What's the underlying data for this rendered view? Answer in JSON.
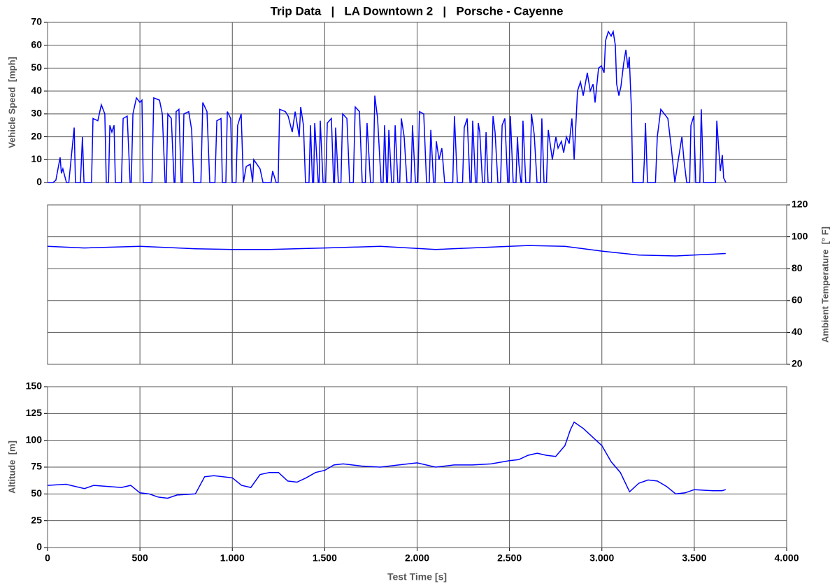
{
  "chart_data": [
    {
      "type": "line",
      "title": "Trip Data   |   LA Downtown 2   |   Porsche - Cayenne",
      "ylabel": "Vehicle Speed  [mph]",
      "x": [
        0,
        30,
        45,
        68,
        75,
        83,
        102,
        115,
        144,
        151,
        178,
        189,
        197,
        238,
        246,
        272,
        291,
        310,
        318,
        330,
        337,
        348,
        360,
        367,
        400,
        409,
        431,
        447,
        453,
        462,
        481,
        500,
        511,
        518,
        565,
        575,
        606,
        621,
        636,
        643,
        651,
        670,
        685,
        690,
        696,
        711,
        723,
        730,
        738,
        764,
        780,
        791,
        830,
        840,
        863,
        878,
        906,
        916,
        939,
        946,
        965,
        973,
        991,
        999,
        1020,
        1029,
        1048,
        1060,
        1075,
        1097,
        1110,
        1116,
        1150,
        1166,
        1210,
        1218,
        1237,
        1248,
        1256,
        1287,
        1302,
        1324,
        1340,
        1362,
        1370,
        1385,
        1396,
        1415,
        1423,
        1434,
        1440,
        1446,
        1465,
        1470,
        1476,
        1491,
        1505,
        1514,
        1536,
        1548,
        1553,
        1559,
        1574,
        1588,
        1597,
        1620,
        1635,
        1655,
        1665,
        1688,
        1703,
        1720,
        1729,
        1748,
        1762,
        1771,
        1786,
        1805,
        1816,
        1824,
        1835,
        1840,
        1847,
        1862,
        1873,
        1881,
        1896,
        1906,
        1915,
        1930,
        1945,
        1967,
        1975,
        1991,
        2004,
        2013,
        2036,
        2051,
        2066,
        2074,
        2089,
        2097,
        2104,
        2119,
        2134,
        2149,
        2193,
        2202,
        2218,
        2246,
        2255,
        2271,
        2286,
        2293,
        2301,
        2316,
        2323,
        2331,
        2339,
        2354,
        2365,
        2373,
        2384,
        2402,
        2411,
        2422,
        2437,
        2452,
        2460,
        2475,
        2490,
        2497,
        2505,
        2520,
        2535,
        2543,
        2551,
        2562,
        2566,
        2573,
        2588,
        2610,
        2619,
        2634,
        2649,
        2667,
        2675,
        2687,
        2700,
        2710,
        2732,
        2751,
        2763,
        2781,
        2793,
        2808,
        2823,
        2838,
        2850,
        2868,
        2884,
        2899,
        2921,
        2937,
        2952,
        2963,
        2982,
        2997,
        3012,
        3020,
        3035,
        3050,
        3061,
        3073,
        3080,
        3092,
        3103,
        3118,
        3130,
        3141,
        3148,
        3160,
        3167,
        3224,
        3230,
        3236,
        3247,
        3290,
        3300,
        3319,
        3338,
        3357,
        3376,
        3395,
        3414,
        3433,
        3444,
        3459,
        3475,
        3482,
        3497,
        3508,
        3530,
        3538,
        3550,
        3615,
        3622,
        3641,
        3652,
        3659,
        3671
      ],
      "series": [
        {
          "color": "#0000ff",
          "values": [
            0,
            0,
            1,
            11,
            4,
            6,
            0,
            0,
            24,
            0,
            0,
            20,
            0,
            0,
            28,
            27,
            34,
            30,
            0,
            0,
            25,
            22,
            25,
            0,
            0,
            28,
            29,
            0,
            0,
            30,
            37,
            35,
            36,
            0,
            0,
            37,
            36,
            30,
            0,
            0,
            30,
            28,
            0,
            0,
            31,
            32,
            0,
            0,
            30,
            31,
            23,
            0,
            0,
            35,
            31,
            0,
            0,
            27,
            28,
            0,
            0,
            31,
            28,
            0,
            0,
            25,
            30,
            0,
            7,
            8,
            0,
            10,
            6,
            0,
            0,
            5,
            0,
            0,
            32,
            31,
            29,
            22,
            31,
            20,
            33,
            25,
            0,
            0,
            25,
            0,
            0,
            26,
            0,
            0,
            27,
            0,
            0,
            26,
            28,
            0,
            0,
            24,
            0,
            0,
            30,
            28,
            0,
            0,
            33,
            31,
            0,
            0,
            26,
            0,
            0,
            38,
            28,
            0,
            0,
            25,
            0,
            0,
            23,
            0,
            0,
            25,
            0,
            0,
            28,
            20,
            0,
            0,
            25,
            0,
            0,
            31,
            30,
            0,
            0,
            23,
            0,
            0,
            18,
            10,
            15,
            0,
            0,
            29,
            0,
            0,
            24,
            28,
            0,
            0,
            27,
            0,
            0,
            26,
            22,
            0,
            0,
            22,
            0,
            0,
            29,
            22,
            0,
            0,
            25,
            28,
            0,
            0,
            29,
            0,
            0,
            20,
            8,
            0,
            0,
            27,
            0,
            0,
            30,
            21,
            0,
            0,
            28,
            0,
            0,
            23,
            10,
            20,
            15,
            18,
            13,
            20,
            17,
            28,
            10,
            40,
            44,
            38,
            48,
            40,
            43,
            35,
            50,
            51,
            48,
            62,
            66,
            64,
            66,
            60,
            43,
            38,
            42,
            52,
            58,
            50,
            55,
            32,
            0,
            0,
            10,
            26,
            0,
            0,
            20,
            32,
            30,
            28,
            15,
            0,
            10,
            20,
            10,
            0,
            0,
            25,
            29,
            0,
            0,
            32,
            0,
            0,
            27,
            5,
            12,
            2,
            0
          ]
        }
      ],
      "ylim": [
        0,
        70
      ],
      "yticks": [
        0,
        10,
        20,
        30,
        40,
        50,
        60,
        70
      ],
      "grid": true,
      "y_axis_side": "left"
    },
    {
      "type": "line",
      "ylabel": "Ambient Temperature  [° F]",
      "x": [
        0,
        200,
        500,
        800,
        1000,
        1200,
        1500,
        1800,
        2100,
        2400,
        2600,
        2800,
        3000,
        3200,
        3400,
        3670
      ],
      "series": [
        {
          "color": "#0000ff",
          "values": [
            94,
            93,
            94,
            92.5,
            92,
            92,
            93,
            94,
            92,
            93.5,
            94.5,
            94,
            91,
            88.5,
            88,
            89.5
          ]
        }
      ],
      "ylim": [
        20,
        120
      ],
      "yticks": [
        20,
        40,
        60,
        80,
        100,
        120
      ],
      "grid": true,
      "y_axis_side": "right"
    },
    {
      "type": "line",
      "ylabel": "Altitude  [m]",
      "xlabel": "Test Time [s]",
      "x": [
        0,
        100,
        200,
        250,
        400,
        450,
        500,
        550,
        600,
        650,
        700,
        800,
        850,
        900,
        1000,
        1050,
        1100,
        1150,
        1200,
        1250,
        1300,
        1350,
        1400,
        1450,
        1500,
        1550,
        1600,
        1700,
        1800,
        1900,
        2000,
        2100,
        2200,
        2300,
        2400,
        2500,
        2550,
        2600,
        2650,
        2700,
        2750,
        2800,
        2830,
        2850,
        2900,
        2950,
        3000,
        3050,
        3100,
        3150,
        3200,
        3250,
        3300,
        3350,
        3400,
        3450,
        3500,
        3600,
        3650,
        3670
      ],
      "series": [
        {
          "color": "#0000ff",
          "values": [
            58,
            59,
            55,
            58,
            56,
            58,
            51,
            50,
            47,
            46,
            49,
            50,
            66,
            67,
            65,
            58,
            56,
            68,
            70,
            70,
            62,
            61,
            65,
            70,
            72,
            77,
            78,
            76,
            75,
            77,
            79,
            75,
            77,
            77,
            78,
            81,
            82,
            86,
            88,
            86,
            85,
            95,
            110,
            117,
            111,
            103,
            95,
            80,
            70,
            52,
            60,
            63,
            62,
            57,
            50,
            51,
            54,
            53,
            53,
            54
          ]
        }
      ],
      "ylim": [
        0,
        150
      ],
      "yticks": [
        0,
        25,
        50,
        75,
        100,
        125,
        150
      ],
      "grid": true,
      "y_axis_side": "left",
      "xlim": [
        0,
        4000
      ],
      "xticks": [
        0,
        500,
        {
          "value": 1000,
          "label": "1.000"
        },
        {
          "value": 1500,
          "label": "1.500"
        },
        {
          "value": 2000,
          "label": "2.000"
        },
        {
          "value": 2500,
          "label": "2.500"
        },
        {
          "value": 3000,
          "label": "3.000"
        },
        {
          "value": 3500,
          "label": "3.500"
        },
        {
          "value": 4000,
          "label": "4.000"
        }
      ]
    }
  ]
}
